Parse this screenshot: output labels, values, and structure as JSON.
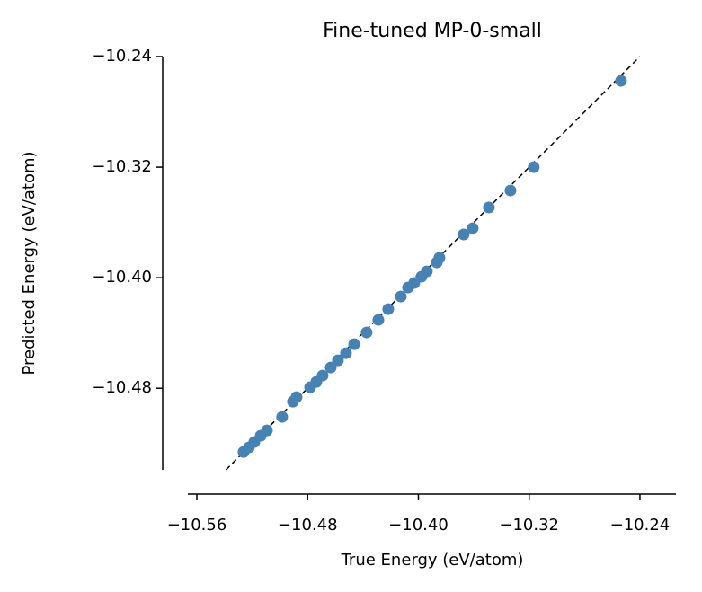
{
  "chart_data": {
    "type": "scatter",
    "title": "Fine-tuned MP-0-small",
    "x_label": "True Energy (eV/atom)",
    "y_label": "Predicted Energy (eV/atom)",
    "color": "#4682b4",
    "diagonal": true,
    "xlim": [
      -10.5665,
      -10.214
    ],
    "ylim": [
      -10.539,
      -10.24
    ],
    "xticks": [
      {
        "value": -10.56,
        "label": "−10.56"
      },
      {
        "value": -10.48,
        "label": "−10.48"
      },
      {
        "value": -10.4,
        "label": "−10.40"
      },
      {
        "value": -10.32,
        "label": "−10.32"
      },
      {
        "value": -10.24,
        "label": "−10.24"
      }
    ],
    "yticks": [
      {
        "value": -10.48,
        "label": "−10.48"
      },
      {
        "value": -10.4,
        "label": "−10.40"
      },
      {
        "value": -10.32,
        "label": "−10.32"
      },
      {
        "value": -10.24,
        "label": "−10.24"
      }
    ],
    "x": [
      -10.2537,
      -10.3167,
      -10.3335,
      -10.3491,
      -10.3608,
      -10.3673,
      -10.3848,
      -10.3867,
      -10.3939,
      -10.3978,
      -10.403,
      -10.4075,
      -10.4127,
      -10.4218,
      -10.4289,
      -10.4374,
      -10.4464,
      -10.4523,
      -10.4581,
      -10.4633,
      -10.4692,
      -10.4737,
      -10.4782,
      -10.488,
      -10.4906,
      -10.4984,
      -10.5094,
      -10.5139,
      -10.5185,
      -10.5224,
      -10.5263
    ],
    "values": [
      -10.2576,
      -10.32,
      -10.3369,
      -10.3492,
      -10.3642,
      -10.3687,
      -10.3856,
      -10.3889,
      -10.3954,
      -10.3993,
      -10.4038,
      -10.4071,
      -10.4136,
      -10.4227,
      -10.4305,
      -10.4396,
      -10.4481,
      -10.4546,
      -10.4598,
      -10.465,
      -10.4708,
      -10.4754,
      -10.4793,
      -10.4864,
      -10.4897,
      -10.5007,
      -10.5105,
      -10.5144,
      -10.5189,
      -10.5228,
      -10.5261
    ]
  }
}
